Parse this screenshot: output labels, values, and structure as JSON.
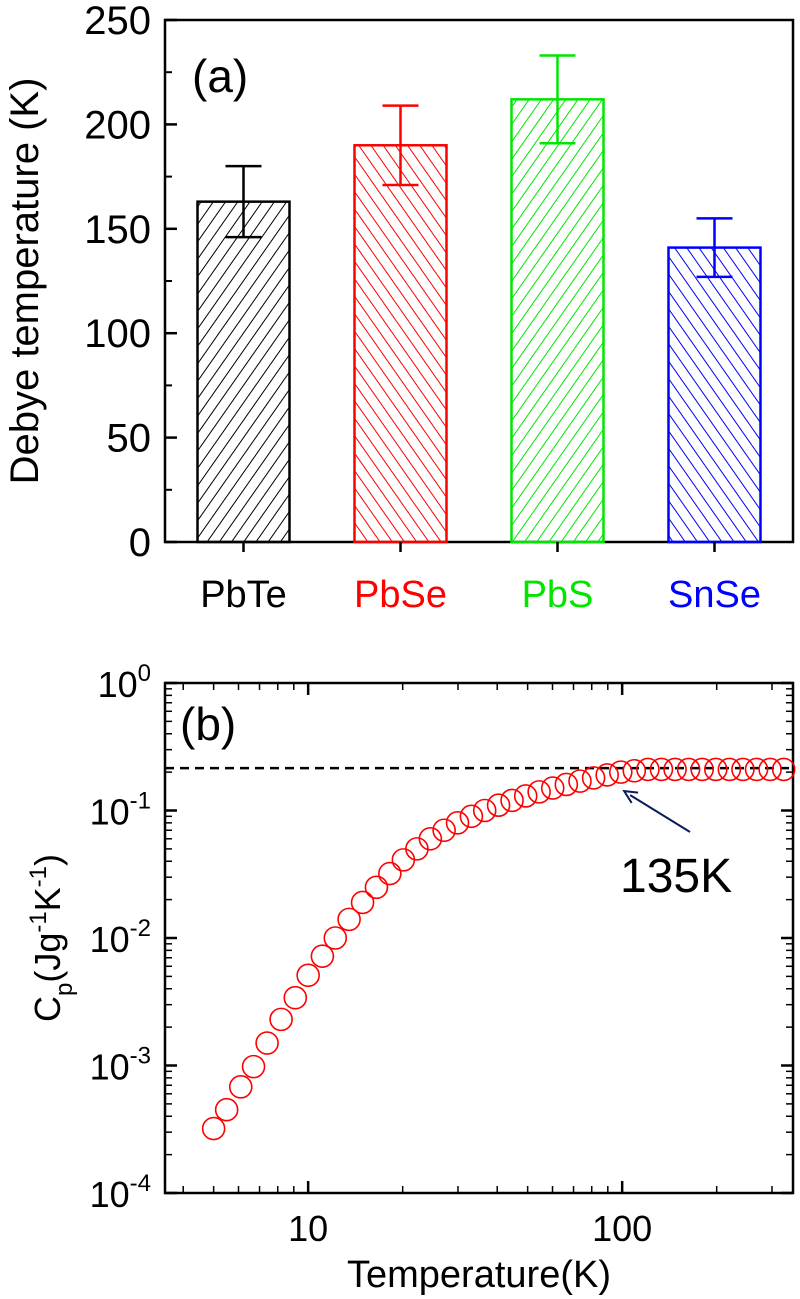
{
  "chart_data": [
    {
      "type": "bar",
      "panel_label": "(a)",
      "ylabel": "Debye temperature (K)",
      "xlabel": "",
      "ylim": [
        0,
        250
      ],
      "yticks": [
        "0",
        "50",
        "100",
        "150",
        "200",
        "250"
      ],
      "categories": [
        "PbTe",
        "PbSe",
        "PbS",
        "SnSe"
      ],
      "values": [
        163,
        190,
        212,
        141
      ],
      "errors": [
        17,
        19,
        21,
        14
      ],
      "colors": [
        "#000000",
        "#ff0000",
        "#00e600",
        "#0000ff"
      ],
      "bar_fill": "diagonal-hatch",
      "grid": false
    },
    {
      "type": "scatter",
      "panel_label": "(b)",
      "xlabel": "Temperature(K)",
      "ylabel": {
        "base": "C",
        "sub": "p",
        "unit_prefix": "(Jg",
        "unit_mid": "K",
        "exp": "-1",
        "close": ")"
      },
      "x_scale": "log",
      "y_scale": "log",
      "xlim": [
        3.5,
        350
      ],
      "ylim": [
        0.0001,
        1
      ],
      "xticks": [
        {
          "value": 10,
          "label": "10"
        },
        {
          "value": 100,
          "label": "100"
        }
      ],
      "yticks": [
        {
          "value": 0.0001,
          "base": "10",
          "exp": "-4"
        },
        {
          "value": 0.001,
          "base": "10",
          "exp": "-3"
        },
        {
          "value": 0.01,
          "base": "10",
          "exp": "-2"
        },
        {
          "value": 0.1,
          "base": "10",
          "exp": "-1"
        },
        {
          "value": 1,
          "base": "10",
          "exp": "0"
        }
      ],
      "marker_color": "#ff0000",
      "marker": "open-circle",
      "hline": {
        "y": 0.215,
        "style": "dashed",
        "color": "#000000"
      },
      "annotation": {
        "text": "135K",
        "arrow_to_x": 100,
        "arrow_to_y": 0.17,
        "color": "#0a1a5c"
      },
      "series": [
        {
          "x": [
            5.0,
            5.5,
            6.1,
            6.7,
            7.4,
            8.2,
            9.1,
            10.0,
            11.1,
            12.2,
            13.5,
            14.9,
            16.5,
            18.2,
            20.1,
            22.2,
            24.5,
            27.1,
            29.9,
            33.1,
            36.5,
            40.4,
            44.6,
            49.3,
            54.4,
            60.1,
            66.4,
            73.4,
            81.1,
            89.6,
            99.0,
            109.3,
            120.8,
            133.4,
            147.4,
            162.8,
            179.8,
            198.7,
            219.5,
            242.5,
            267.9,
            295.9,
            326.9
          ],
          "y": [
            0.00032,
            0.00045,
            0.00068,
            0.00098,
            0.0015,
            0.0023,
            0.0034,
            0.0051,
            0.0072,
            0.01,
            0.014,
            0.019,
            0.025,
            0.032,
            0.041,
            0.05,
            0.06,
            0.07,
            0.08,
            0.09,
            0.1,
            0.11,
            0.12,
            0.13,
            0.14,
            0.15,
            0.16,
            0.17,
            0.18,
            0.19,
            0.2,
            0.205,
            0.21,
            0.21,
            0.21,
            0.21,
            0.21,
            0.21,
            0.21,
            0.21,
            0.21,
            0.21,
            0.21
          ]
        }
      ],
      "grid": false
    }
  ]
}
